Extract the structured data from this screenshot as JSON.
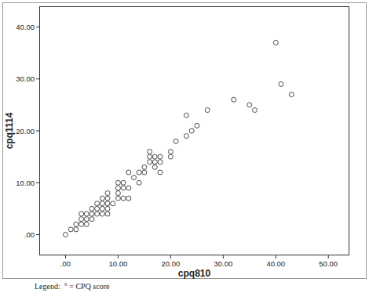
{
  "chart_data": {
    "type": "scatter",
    "x_label": "cpq810",
    "y_label": "cpq1114",
    "annotation": "Legend:  ° = CPQ score",
    "x": [
      0,
      1,
      2,
      2,
      3,
      3,
      3,
      4,
      4,
      4,
      5,
      5,
      5,
      6,
      6,
      6,
      7,
      7,
      7,
      7,
      8,
      8,
      8,
      8,
      8,
      9,
      10,
      10,
      10,
      10,
      11,
      11,
      11,
      12,
      12,
      12,
      13,
      14,
      14,
      15,
      15,
      16,
      16,
      16,
      17,
      17,
      17,
      18,
      18,
      18,
      20,
      20,
      21,
      23,
      23,
      24,
      25,
      27,
      32,
      35,
      36,
      40,
      41,
      43
    ],
    "values": [
      0,
      1,
      1,
      2,
      2,
      3,
      4,
      2,
      3,
      4,
      3,
      4,
      5,
      4,
      5,
      6,
      4,
      5,
      6,
      7,
      4,
      5,
      6,
      7,
      8,
      6,
      7,
      8,
      9,
      10,
      7,
      9,
      10,
      7,
      9,
      12,
      11,
      10,
      12,
      12,
      13,
      14,
      15,
      16,
      13,
      14,
      15,
      12,
      14,
      15,
      15,
      16,
      18,
      19,
      23,
      20,
      21,
      24,
      26,
      25,
      24,
      37,
      29,
      27
    ],
    "color": "#4a4a4a",
    "marker": "open-circle",
    "xlim": [
      -5,
      54
    ],
    "ylim": [
      -4,
      44
    ],
    "xticks": [
      {
        "value": 0,
        "label": ".00"
      },
      {
        "value": 10,
        "label": "10.00"
      },
      {
        "value": 20,
        "label": "20.00"
      },
      {
        "value": 30,
        "label": "30.00"
      },
      {
        "value": 40,
        "label": "40.00"
      },
      {
        "value": 50,
        "label": "50.00"
      }
    ],
    "yticks": [
      {
        "value": 0,
        "label": ".00"
      },
      {
        "value": 10,
        "label": "10.00"
      },
      {
        "value": 20,
        "label": "20.00"
      },
      {
        "value": 30,
        "label": "30.00"
      },
      {
        "value": 40,
        "label": "40.00"
      }
    ],
    "grid": false
  }
}
